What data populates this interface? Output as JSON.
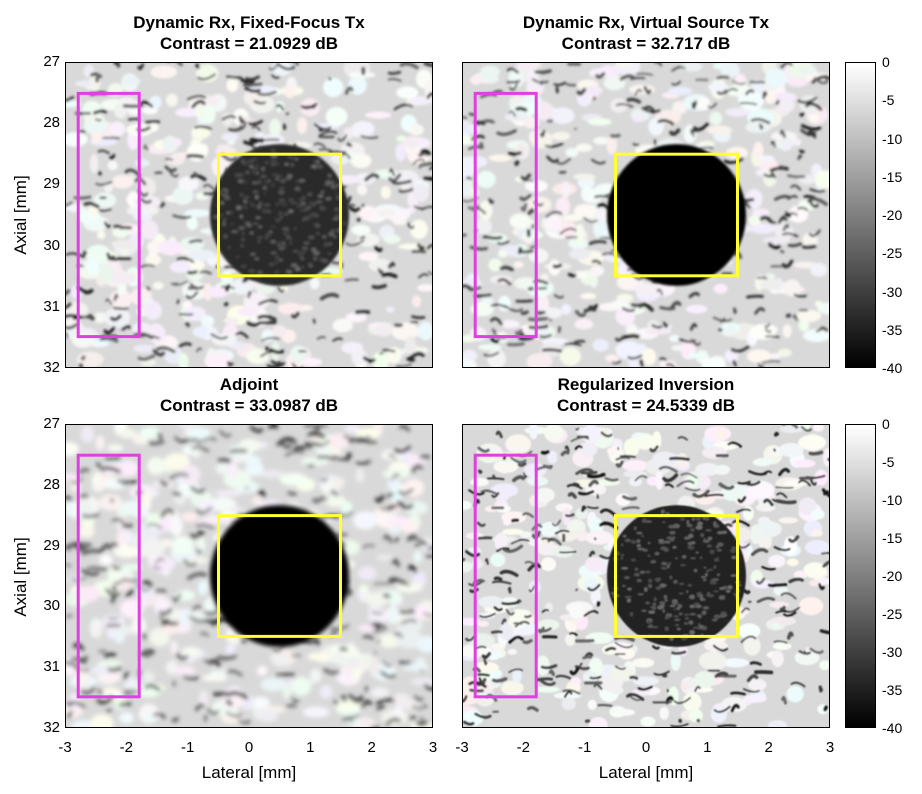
{
  "panels": [
    {
      "title_line1": "Dynamic Rx, Fixed-Focus Tx",
      "title_line2": "Contrast = 21.0929 dB",
      "style": "speckle_noisy"
    },
    {
      "title_line1": "Dynamic Rx, Virtual Source Tx",
      "title_line2": "Contrast = 32.717 dB",
      "style": "clean_dark"
    },
    {
      "title_line1": "Adjoint",
      "title_line2": "Contrast = 33.0987 dB",
      "style": "smooth_dark"
    },
    {
      "title_line1": "Regularized Inversion",
      "title_line2": "Contrast = 24.5339 dB",
      "style": "fine_speckle"
    }
  ],
  "axes": {
    "ylabel": "Axial [mm]",
    "xlabel": "Lateral [mm]",
    "yticks": [
      "27",
      "28",
      "29",
      "30",
      "31",
      "32"
    ],
    "xticks": [
      "-3",
      "-2",
      "-1",
      "0",
      "1",
      "2",
      "3"
    ]
  },
  "colorbar": {
    "ticks": [
      "0",
      "-5",
      "-10",
      "-15",
      "-20",
      "-25",
      "-30",
      "-35",
      "-40"
    ]
  },
  "colors": {
    "roi_inside": "#ffff33",
    "roi_background": "#e040e0"
  }
}
